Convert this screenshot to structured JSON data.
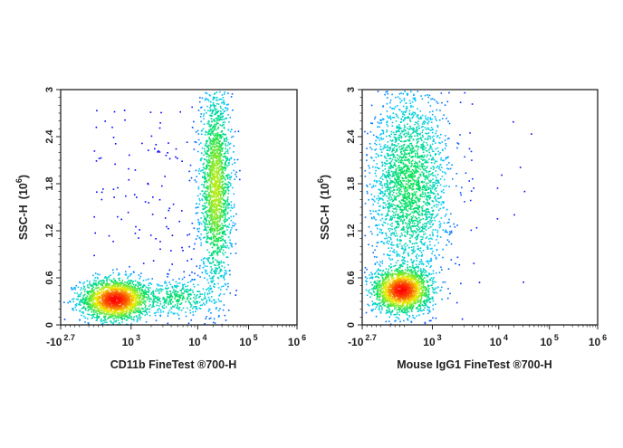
{
  "chart_data": [
    {
      "type": "scatter",
      "title": "",
      "xlabel": "CD11b FineTest ®700-H",
      "ylabel": "SSC-H",
      "ylabel_unit": {
        "base": "(10",
        "exp": "6",
        "close": ")"
      },
      "x_scale": "biexponential",
      "xlim": [
        -501,
        1000000
      ],
      "ylim": [
        0,
        3
      ],
      "x_ticks": [
        {
          "value": -501,
          "base": "-10",
          "exp": "2.7"
        },
        {
          "value": 1000,
          "base": "10",
          "exp": "3"
        },
        {
          "value": 10000,
          "base": "10",
          "exp": "4"
        },
        {
          "value": 100000,
          "base": "10",
          "exp": "5"
        },
        {
          "value": 1000000,
          "base": "10",
          "exp": "6"
        }
      ],
      "y_ticks": [
        "0",
        "0.6",
        "1.2",
        "1.8",
        "2.4",
        "3"
      ],
      "y_tick_values": [
        0,
        0.6,
        1.2,
        1.8,
        2.4,
        3
      ],
      "colormap": [
        "#0000ff",
        "#00c8ff",
        "#00e060",
        "#f0f000",
        "#ff0000"
      ],
      "populations": [
        {
          "x_center": 650,
          "x_range": [
            130,
            2600
          ],
          "y_center": 0.33,
          "y_range": [
            0.08,
            0.62
          ],
          "share": 0.45
        },
        {
          "x_center": 22000,
          "x_range": [
            11500,
            48000
          ],
          "y_center": 1.75,
          "y_range": [
            0.5,
            3.0
          ],
          "share": 0.43
        },
        {
          "x_center": 5000,
          "x_range": [
            1500,
            20000
          ],
          "y_center": 0.35,
          "y_range": [
            0.15,
            0.6
          ],
          "share": 0.08
        },
        {
          "x_center": 3000,
          "x_range": [
            100,
            40000
          ],
          "y_center": 1.4,
          "y_range": [
            0.0,
            2.8
          ],
          "share": 0.04
        }
      ]
    },
    {
      "type": "scatter",
      "title": "",
      "xlabel": "Mouse IgG1  FineTest ®700-H",
      "ylabel": "SSC-H",
      "ylabel_unit": {
        "base": "(10",
        "exp": "6",
        "close": ")"
      },
      "x_scale": "biexponential",
      "xlim": [
        -501,
        1000000
      ],
      "ylim": [
        0,
        3
      ],
      "x_ticks": [
        {
          "value": -501,
          "base": "-10",
          "exp": "2.7"
        },
        {
          "value": 1000,
          "base": "10",
          "exp": "3"
        },
        {
          "value": 10000,
          "base": "10",
          "exp": "4"
        },
        {
          "value": 100000,
          "base": "10",
          "exp": "5"
        },
        {
          "value": 1000000,
          "base": "10",
          "exp": "6"
        }
      ],
      "y_ticks": [
        "0",
        "0.6",
        "1.2",
        "1.8",
        "2.4",
        "3"
      ],
      "y_tick_values": [
        0,
        0.6,
        1.2,
        1.8,
        2.4,
        3
      ],
      "colormap": [
        "#0000ff",
        "#00c8ff",
        "#00e060",
        "#f0f000",
        "#ff0000"
      ],
      "populations": [
        {
          "x_center": 330,
          "x_range": [
            -350,
            900
          ],
          "y_center": 0.45,
          "y_range": [
            0.15,
            0.72
          ],
          "share": 0.42
        },
        {
          "x_center": 500,
          "x_range": [
            -300,
            1800
          ],
          "y_center": 1.8,
          "y_range": [
            0.6,
            3.0
          ],
          "share": 0.56
        },
        {
          "x_center": 3000,
          "x_range": [
            1000,
            50000
          ],
          "y_center": 1.5,
          "y_range": [
            0.4,
            2.6
          ],
          "share": 0.004
        }
      ]
    }
  ]
}
